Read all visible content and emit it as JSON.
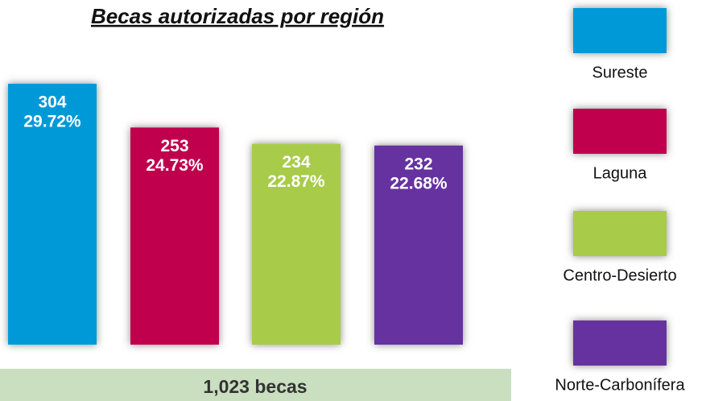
{
  "chart_data": {
    "type": "bar",
    "title": "Becas autorizadas por región",
    "categories": [
      "Sureste",
      "Laguna",
      "Centro-Desierto",
      "Norte-Carbonífera"
    ],
    "values": [
      304,
      253,
      234,
      232
    ],
    "shares": [
      29.72,
      24.73,
      22.87,
      22.68
    ],
    "share_labels": [
      "29.72%",
      "24.73%",
      "22.87%",
      "22.68%"
    ],
    "colors": [
      "#0099d8",
      "#c0004e",
      "#a8cc48",
      "#6630a0"
    ],
    "total_label": "1,023 becas"
  }
}
